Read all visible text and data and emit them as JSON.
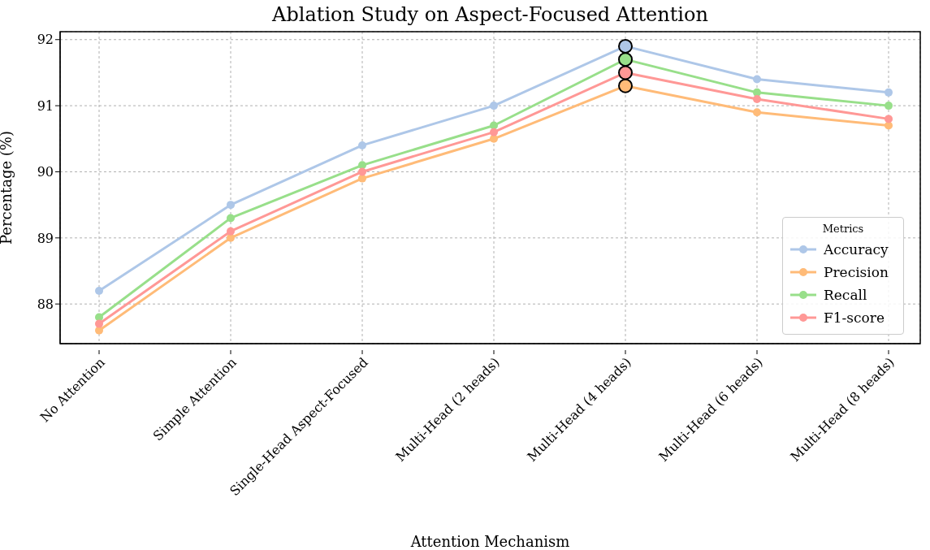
{
  "chart_data": {
    "type": "line",
    "title": "Ablation Study on Aspect-Focused Attention",
    "xlabel": "Attention Mechanism",
    "ylabel": "Percentage (%)",
    "legend_title": "Metrics",
    "categories": [
      "No Attention",
      "Simple Attention",
      "Single-Head Aspect-Focused",
      "Multi-Head (2 heads)",
      "Multi-Head (4 heads)",
      "Multi-Head (6 heads)",
      "Multi-Head (8 heads)"
    ],
    "series": [
      {
        "name": "Accuracy",
        "color": "#aec7e8",
        "values": [
          88.2,
          89.5,
          90.4,
          91.0,
          91.9,
          91.4,
          91.2
        ]
      },
      {
        "name": "Precision",
        "color": "#ffbb78",
        "values": [
          87.6,
          89.0,
          89.9,
          90.5,
          91.3,
          90.9,
          90.7
        ]
      },
      {
        "name": "Recall",
        "color": "#98df8a",
        "values": [
          87.8,
          89.3,
          90.1,
          90.7,
          91.7,
          91.2,
          91.0
        ]
      },
      {
        "name": "F1-score",
        "color": "#ff9896",
        "values": [
          87.7,
          89.1,
          90.0,
          90.6,
          91.5,
          91.1,
          90.8
        ]
      }
    ],
    "ylim": [
      87.4,
      92.12
    ],
    "yticks": [
      88,
      89,
      90,
      91,
      92
    ],
    "grid": true,
    "legend": "bottom right",
    "marker": "circle",
    "line_style": "solid"
  }
}
